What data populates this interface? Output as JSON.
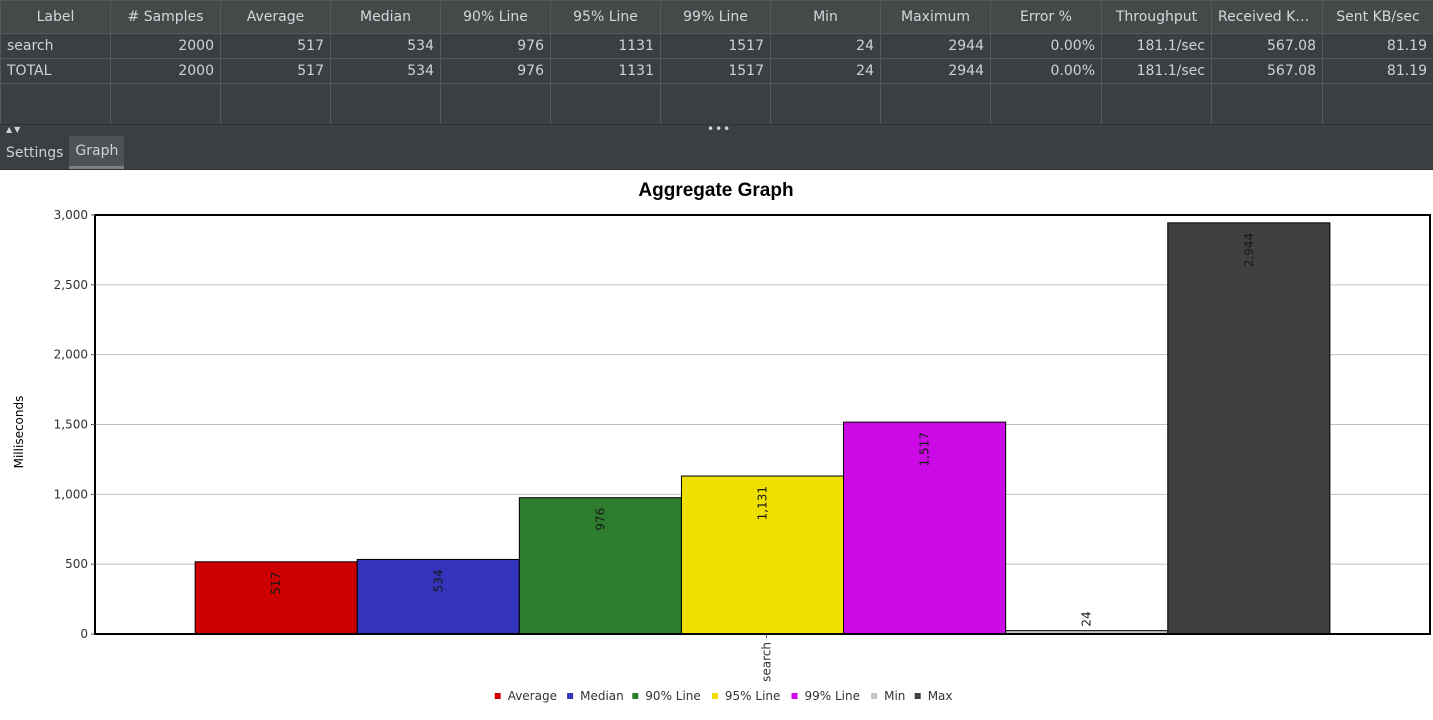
{
  "table": {
    "headers": [
      "Label",
      "# Samples",
      "Average",
      "Median",
      "90% Line",
      "95% Line",
      "99% Line",
      "Min",
      "Maximum",
      "Error %",
      "Throughput",
      "Received KB/...",
      "Sent KB/sec"
    ],
    "rows": [
      [
        "search",
        "2000",
        "517",
        "534",
        "976",
        "1131",
        "1517",
        "24",
        "2944",
        "0.00%",
        "181.1/sec",
        "567.08",
        "81.19"
      ],
      [
        "TOTAL",
        "2000",
        "517",
        "534",
        "976",
        "1131",
        "1517",
        "24",
        "2944",
        "0.00%",
        "181.1/sec",
        "567.08",
        "81.19"
      ]
    ]
  },
  "splitter": {
    "arrows": "▲▼",
    "dots": "•••"
  },
  "tabs": [
    {
      "label": "Settings",
      "active": false
    },
    {
      "label": "Graph",
      "active": true
    }
  ],
  "chart_data": {
    "type": "bar",
    "title": "Aggregate Graph",
    "ylabel": "Milliseconds",
    "xlabel": "",
    "categories": [
      "search"
    ],
    "ylim": [
      0,
      3000
    ],
    "yticks": [
      0,
      500,
      1000,
      1500,
      2000,
      2500,
      3000
    ],
    "ytick_labels": [
      "0",
      "500",
      "1,000",
      "1,500",
      "2,000",
      "2,500",
      "3,000"
    ],
    "grid": true,
    "legend_position": "bottom",
    "series": [
      {
        "name": "Average",
        "values": [
          517
        ],
        "label": "517",
        "color": "#cc0000"
      },
      {
        "name": "Median",
        "values": [
          534
        ],
        "label": "534",
        "color": "#3333bb"
      },
      {
        "name": "90% Line",
        "values": [
          976
        ],
        "label": "976",
        "color": "#2e7d2e"
      },
      {
        "name": "95% Line",
        "values": [
          1131
        ],
        "label": "1,131",
        "color": "#f0e000"
      },
      {
        "name": "99% Line",
        "values": [
          1517
        ],
        "label": "1,517",
        "color": "#cc0ae6"
      },
      {
        "name": "Min",
        "values": [
          24
        ],
        "label": "24",
        "color": "#c4c4c4"
      },
      {
        "name": "Max",
        "values": [
          2944
        ],
        "label": "2,944",
        "color": "#404040"
      }
    ]
  }
}
